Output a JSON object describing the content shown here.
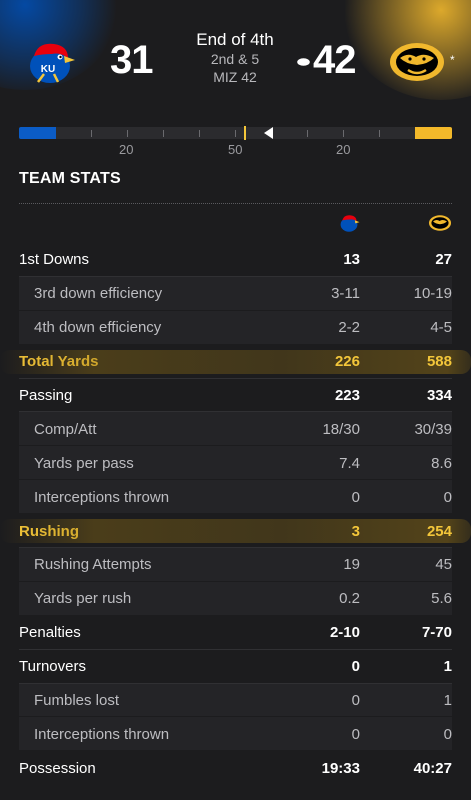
{
  "game": {
    "home_score": "31",
    "away_score": "42",
    "period": "End of 4th",
    "down_distance": "2nd & 5",
    "ball_spot": "MIZ 42",
    "away_rank_marker": "*"
  },
  "field": {
    "yard_labels": [
      "20",
      "50",
      "20"
    ],
    "colors": {
      "home": "#0b5cc6",
      "away": "#f3b92a"
    }
  },
  "team_stats": {
    "title": "TEAM STATS",
    "rows": [
      {
        "label": "1st Downs",
        "home": "13",
        "away": "27"
      },
      {
        "label": "3rd down efficiency",
        "home": "3-11",
        "away": "10-19"
      },
      {
        "label": "4th down efficiency",
        "home": "2-2",
        "away": "4-5"
      },
      {
        "label": "Total Yards",
        "home": "226",
        "away": "588"
      },
      {
        "label": "Passing",
        "home": "223",
        "away": "334"
      },
      {
        "label": "Comp/Att",
        "home": "18/30",
        "away": "30/39"
      },
      {
        "label": "Yards per pass",
        "home": "7.4",
        "away": "8.6"
      },
      {
        "label": "Interceptions thrown",
        "home": "0",
        "away": "0"
      },
      {
        "label": "Rushing",
        "home": "3",
        "away": "254"
      },
      {
        "label": "Rushing Attempts",
        "home": "19",
        "away": "45"
      },
      {
        "label": "Yards per rush",
        "home": "0.2",
        "away": "5.6"
      },
      {
        "label": "Penalties",
        "home": "2-10",
        "away": "7-70"
      },
      {
        "label": "Turnovers",
        "home": "0",
        "away": "1"
      },
      {
        "label": "Fumbles lost",
        "home": "0",
        "away": "1"
      },
      {
        "label": "Interceptions thrown",
        "home": "0",
        "away": "0"
      },
      {
        "label": "Possession",
        "home": "19:33",
        "away": "40:27"
      }
    ]
  },
  "icons": {
    "home_logo": "kansas-jayhawk-logo",
    "away_logo": "missouri-tiger-logo",
    "possession": "football-icon"
  },
  "accent": "#f3c63a"
}
